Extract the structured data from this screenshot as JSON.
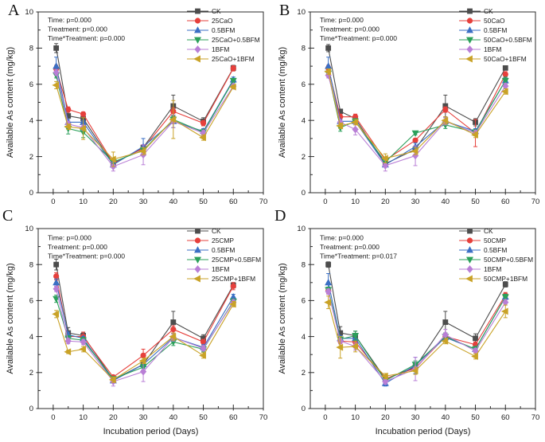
{
  "figure": {
    "background": "#ffffff",
    "panel_labels": [
      "A",
      "B",
      "C",
      "D"
    ],
    "axis_color": "#2b2b2b",
    "text_color": "#1a1a1a"
  },
  "chart_data": [
    {
      "type": "line",
      "panel": "A",
      "xlabel": "",
      "ylabel": "Available As content (mg/kg)",
      "xlim": [
        -5,
        70
      ],
      "ylim": [
        0,
        10
      ],
      "xticks": [
        0,
        10,
        20,
        30,
        40,
        50,
        60,
        70
      ],
      "yticks": [
        0,
        2,
        4,
        6,
        8,
        10
      ],
      "x_minor_step": 5,
      "y_minor_step": 1,
      "grid": false,
      "legend_position": "top-right",
      "annotations": [
        "Time: p=0.000",
        "Treatment: p=0.000",
        "Time*Treatment: p=0.000"
      ],
      "x": [
        1,
        5,
        10,
        20,
        30,
        40,
        50,
        60
      ],
      "series": [
        {
          "name": "CK",
          "color": "#4d4d4d",
          "marker": "square",
          "values": [
            8.0,
            4.25,
            4.1,
            1.6,
            2.5,
            4.8,
            3.95,
            6.9
          ],
          "errors": [
            0.25,
            0.3,
            0.15,
            0.1,
            0.15,
            0.6,
            0.2,
            0.15
          ]
        },
        {
          "name": "25CaO",
          "color": "#e6403c",
          "marker": "circle",
          "values": [
            6.85,
            4.6,
            4.35,
            1.65,
            2.45,
            4.5,
            3.85,
            6.88
          ],
          "errors": [
            0.2,
            0.15,
            0.12,
            0.1,
            0.2,
            0.2,
            0.15,
            0.15
          ]
        },
        {
          "name": "0.5BFM",
          "color": "#3a6fc4",
          "marker": "triangle-up",
          "values": [
            7.0,
            3.9,
            3.9,
            1.55,
            2.55,
            3.95,
            3.4,
            6.25
          ],
          "errors": [
            0.5,
            0.15,
            0.1,
            0.1,
            0.45,
            0.35,
            0.15,
            0.15
          ]
        },
        {
          "name": "25CaO+0.5BFM",
          "color": "#2ba05a",
          "marker": "triangle-down",
          "values": [
            6.5,
            3.55,
            3.35,
            1.7,
            2.35,
            4.05,
            3.35,
            6.2
          ],
          "errors": [
            0.15,
            0.3,
            0.3,
            0.1,
            0.15,
            0.2,
            0.15,
            0.12
          ]
        },
        {
          "name": "1BFM",
          "color": "#b97fd6",
          "marker": "diamond",
          "values": [
            6.65,
            3.8,
            3.6,
            1.45,
            2.1,
            3.95,
            3.3,
            5.9
          ],
          "errors": [
            0.15,
            0.15,
            0.15,
            0.25,
            0.55,
            0.35,
            0.15,
            0.1
          ]
        },
        {
          "name": "25CaO+1BFM",
          "color": "#c9a227",
          "marker": "triangle-left",
          "values": [
            5.95,
            3.65,
            3.55,
            1.85,
            2.3,
            4.05,
            3.05,
            5.85
          ],
          "errors": [
            0.2,
            0.15,
            0.6,
            0.4,
            0.2,
            1.05,
            0.15,
            0.1
          ]
        }
      ]
    },
    {
      "type": "line",
      "panel": "B",
      "xlabel": "",
      "ylabel": "Available As content (mg/kg)",
      "xlim": [
        -5,
        70
      ],
      "ylim": [
        0,
        10
      ],
      "xticks": [
        0,
        10,
        20,
        30,
        40,
        50,
        60,
        70
      ],
      "yticks": [
        0,
        2,
        4,
        6,
        8,
        10
      ],
      "x_minor_step": 5,
      "y_minor_step": 1,
      "grid": false,
      "legend_position": "top-right",
      "annotations": [
        "Time: p=0.000",
        "Treatment: p=0.000",
        "Time*Treatment: p=0.000"
      ],
      "x": [
        1,
        5,
        10,
        20,
        30,
        40,
        50,
        60
      ],
      "series": [
        {
          "name": "CK",
          "color": "#4d4d4d",
          "marker": "square",
          "values": [
            8.0,
            4.5,
            4.1,
            1.6,
            2.4,
            4.8,
            3.9,
            6.9
          ],
          "errors": [
            0.2,
            0.1,
            0.2,
            0.1,
            0.15,
            0.6,
            0.2,
            0.1
          ]
        },
        {
          "name": "50CaO",
          "color": "#e6403c",
          "marker": "circle",
          "values": [
            6.9,
            4.2,
            4.2,
            1.8,
            2.9,
            4.6,
            3.3,
            6.55
          ],
          "errors": [
            0.15,
            0.15,
            0.15,
            0.1,
            0.1,
            0.15,
            0.75,
            0.15
          ]
        },
        {
          "name": "0.5BFM",
          "color": "#3a6fc4",
          "marker": "triangle-up",
          "values": [
            7.0,
            3.95,
            3.95,
            1.55,
            2.55,
            3.95,
            3.4,
            6.2
          ],
          "errors": [
            0.5,
            0.1,
            0.1,
            0.1,
            0.2,
            0.2,
            0.15,
            0.15
          ]
        },
        {
          "name": "50CaO+0.5BFM",
          "color": "#2ba05a",
          "marker": "triangle-down",
          "values": [
            6.6,
            3.6,
            3.95,
            1.7,
            3.3,
            3.75,
            3.35,
            6.2
          ],
          "errors": [
            0.15,
            0.2,
            0.15,
            0.1,
            0.1,
            0.2,
            0.15,
            0.2
          ]
        },
        {
          "name": "1BFM",
          "color": "#b97fd6",
          "marker": "diamond",
          "values": [
            6.5,
            3.9,
            3.5,
            1.5,
            2.05,
            3.95,
            3.3,
            5.9
          ],
          "errors": [
            0.15,
            0.1,
            0.3,
            0.3,
            0.55,
            0.2,
            0.15,
            0.15
          ]
        },
        {
          "name": "50CaO+1BFM",
          "color": "#c9a227",
          "marker": "triangle-left",
          "values": [
            6.7,
            3.7,
            3.9,
            1.9,
            2.3,
            4.0,
            3.2,
            5.6
          ],
          "errors": [
            0.15,
            0.15,
            0.15,
            0.25,
            0.2,
            0.2,
            0.15,
            0.15
          ]
        }
      ]
    },
    {
      "type": "line",
      "panel": "C",
      "xlabel": "Incubation period (Days)",
      "ylabel": "Available As content (mg/kg)",
      "xlim": [
        -5,
        70
      ],
      "ylim": [
        0,
        10
      ],
      "xticks": [
        0,
        10,
        20,
        30,
        40,
        50,
        60,
        70
      ],
      "yticks": [
        0,
        2,
        4,
        6,
        8,
        10
      ],
      "x_minor_step": 5,
      "y_minor_step": 1,
      "grid": false,
      "legend_position": "top-right",
      "annotations": [
        "Time: p=0.000",
        "Treatment: p=0.000",
        "Time*Treatment: p=0.000"
      ],
      "x": [
        1,
        5,
        10,
        20,
        30,
        40,
        50,
        60
      ],
      "series": [
        {
          "name": "CK",
          "color": "#4d4d4d",
          "marker": "square",
          "values": [
            8.0,
            4.2,
            4.05,
            1.6,
            2.45,
            4.8,
            3.9,
            6.85
          ],
          "errors": [
            0.3,
            0.3,
            0.15,
            0.1,
            0.15,
            0.6,
            0.2,
            0.15
          ]
        },
        {
          "name": "25CMP",
          "color": "#e6403c",
          "marker": "circle",
          "values": [
            7.35,
            4.0,
            4.0,
            1.75,
            2.95,
            4.4,
            3.7,
            6.8
          ],
          "errors": [
            0.2,
            0.15,
            0.25,
            0.1,
            0.35,
            0.2,
            0.15,
            0.2
          ]
        },
        {
          "name": "0.5BFM",
          "color": "#3a6fc4",
          "marker": "triangle-up",
          "values": [
            7.0,
            4.1,
            3.9,
            1.55,
            2.45,
            3.95,
            3.4,
            6.2
          ],
          "errors": [
            0.2,
            0.15,
            0.1,
            0.1,
            0.2,
            0.2,
            0.15,
            0.15
          ]
        },
        {
          "name": "25CMP+0.5BFM",
          "color": "#2ba05a",
          "marker": "triangle-down",
          "values": [
            6.1,
            3.9,
            3.8,
            1.65,
            2.3,
            3.7,
            3.3,
            5.95
          ],
          "errors": [
            0.2,
            0.15,
            0.15,
            0.1,
            0.15,
            0.2,
            0.15,
            0.15
          ]
        },
        {
          "name": "1BFM",
          "color": "#b97fd6",
          "marker": "diamond",
          "values": [
            6.65,
            3.75,
            3.7,
            1.5,
            2.05,
            3.95,
            3.35,
            5.9
          ],
          "errors": [
            0.15,
            0.15,
            0.15,
            0.25,
            0.55,
            0.2,
            0.15,
            0.15
          ]
        },
        {
          "name": "25CMP+1BFM",
          "color": "#c9a227",
          "marker": "triangle-left",
          "values": [
            5.25,
            3.15,
            3.3,
            1.6,
            2.65,
            4.0,
            2.95,
            5.8
          ],
          "errors": [
            0.2,
            0.1,
            0.15,
            0.15,
            0.15,
            0.2,
            0.15,
            0.15
          ]
        }
      ]
    },
    {
      "type": "line",
      "panel": "D",
      "xlabel": "Incubation period (Days)",
      "ylabel": "Available As content (mg/kg)",
      "xlim": [
        -5,
        70
      ],
      "ylim": [
        0,
        10
      ],
      "xticks": [
        0,
        10,
        20,
        30,
        40,
        50,
        60,
        70
      ],
      "yticks": [
        0,
        2,
        4,
        6,
        8,
        10
      ],
      "x_minor_step": 5,
      "y_minor_step": 1,
      "grid": false,
      "legend_position": "top-right",
      "annotations": [
        "Time: p=0.000",
        "Treatment: p=0.000",
        "Time*Treatment: p=0.017"
      ],
      "x": [
        1,
        5,
        10,
        20,
        30,
        40,
        50,
        60
      ],
      "series": [
        {
          "name": "CK",
          "color": "#4d4d4d",
          "marker": "square",
          "values": [
            8.0,
            4.2,
            4.05,
            1.65,
            2.3,
            4.8,
            3.9,
            6.9
          ],
          "errors": [
            0.15,
            0.35,
            0.25,
            0.1,
            0.15,
            0.6,
            0.25,
            0.15
          ]
        },
        {
          "name": "50CMP",
          "color": "#e6403c",
          "marker": "circle",
          "values": [
            6.55,
            3.75,
            3.7,
            1.65,
            2.25,
            4.0,
            3.55,
            6.3
          ],
          "errors": [
            0.15,
            0.15,
            0.15,
            0.1,
            0.15,
            0.15,
            0.15,
            0.15
          ]
        },
        {
          "name": "0.5BFM",
          "color": "#3a6fc4",
          "marker": "triangle-up",
          "values": [
            7.0,
            3.9,
            3.9,
            1.4,
            2.4,
            3.95,
            3.3,
            6.2
          ],
          "errors": [
            0.5,
            0.15,
            0.15,
            0.15,
            0.45,
            0.2,
            0.15,
            0.15
          ]
        },
        {
          "name": "50CMP+0.5BFM",
          "color": "#2ba05a",
          "marker": "triangle-down",
          "values": [
            6.6,
            3.85,
            4.05,
            1.55,
            2.45,
            4.0,
            3.3,
            6.2
          ],
          "errors": [
            0.15,
            0.15,
            0.25,
            0.1,
            0.2,
            0.2,
            0.15,
            0.15
          ]
        },
        {
          "name": "1BFM",
          "color": "#b97fd6",
          "marker": "diamond",
          "values": [
            6.5,
            3.75,
            3.45,
            1.5,
            2.2,
            4.1,
            3.2,
            5.9
          ],
          "errors": [
            0.15,
            0.15,
            0.2,
            0.15,
            0.65,
            0.3,
            0.15,
            0.15
          ]
        },
        {
          "name": "50CMP+1BFM",
          "color": "#c9a227",
          "marker": "triangle-left",
          "values": [
            5.9,
            3.4,
            3.45,
            1.8,
            2.1,
            3.75,
            2.9,
            5.4
          ],
          "errors": [
            0.35,
            0.6,
            0.3,
            0.15,
            0.2,
            0.15,
            0.15,
            0.35
          ]
        }
      ]
    }
  ]
}
